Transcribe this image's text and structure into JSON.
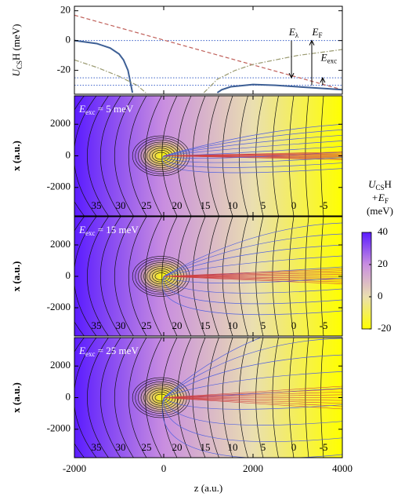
{
  "chart_data": [
    {
      "type": "line",
      "ylabel": {
        "base": "U",
        "sub": "CS",
        "rest": "H (meV)"
      },
      "xlim": [
        -2000,
        4000
      ],
      "ylim": [
        -36,
        23
      ],
      "yticks": [
        -20,
        0,
        20
      ],
      "hlines": {
        "values": [
          0,
          -25,
          -30
        ],
        "color": "#3a5fc8"
      },
      "series": [
        {
          "color": "#c0605a",
          "dash": "dashed",
          "x": [
            -2000,
            4000
          ],
          "values": [
            17,
            -33
          ]
        },
        {
          "color": "#3d5f95",
          "dash": "solid",
          "x": [
            -2000,
            -1500,
            -1200,
            -1000,
            -900,
            -800,
            -700,
            null,
            1200,
            1300,
            1500,
            2000,
            2500,
            3000,
            3500,
            4000
          ],
          "values": [
            0,
            -2,
            -5,
            -9,
            -13,
            -20,
            -35,
            null,
            -35,
            -33,
            -31,
            -29.5,
            -30,
            -31,
            -32,
            -33
          ]
        },
        {
          "color": "#9a9a70",
          "dash": "dashdot",
          "x": [
            -2000,
            -1500,
            -1000,
            -600,
            -400,
            null,
            900,
            1200,
            1600,
            2000,
            3000,
            4000
          ],
          "values": [
            -13,
            -18,
            -24,
            -30,
            -35,
            null,
            -35,
            -26,
            -20,
            -16,
            -10,
            -6
          ]
        }
      ],
      "annotations": [
        {
          "label": {
            "base": "E",
            "sub": "λ"
          },
          "x": 2860,
          "from": 0,
          "to": -25,
          "text_x": 2912,
          "text_y": 5
        },
        {
          "label": {
            "base": "E",
            "sub": "F"
          },
          "x": 3316,
          "from": -30,
          "to": 0,
          "text_x": 3439,
          "text_y": 5
        },
        {
          "label": {
            "base": "E",
            "sub": "exc"
          },
          "x": 3560,
          "from": -30,
          "to": -25,
          "text_x": 3700,
          "text_y": -12
        }
      ]
    },
    {
      "type": "contour",
      "title": {
        "base": "E",
        "sub": "exc",
        "rest": " = 5 meV"
      },
      "ylabel": "x (a.u.)",
      "xlim": [
        -2000,
        4000
      ],
      "ylim": [
        -3800,
        3800
      ],
      "yticks": [
        -2000,
        0,
        2000
      ],
      "contour_labels": {
        "values": [
          35,
          30,
          25,
          20,
          15,
          10,
          5,
          0,
          -5
        ],
        "z": [
          -1509,
          -965,
          -386,
          298,
          930,
          1544,
          2228,
          2912,
          3579
        ]
      }
    },
    {
      "type": "contour",
      "title": {
        "base": "E",
        "sub": "exc",
        "rest": " = 15 meV"
      },
      "ylabel": "x (a.u.)",
      "xlim": [
        -2000,
        4000
      ],
      "ylim": [
        -3800,
        3800
      ],
      "yticks": [
        -2000,
        0,
        2000
      ],
      "contour_labels": {
        "values": [
          35,
          30,
          25,
          20,
          15,
          10,
          5,
          0,
          -5
        ],
        "z": [
          -1509,
          -965,
          -386,
          298,
          930,
          1544,
          2228,
          2912,
          3579
        ]
      }
    },
    {
      "type": "contour",
      "title": {
        "base": "E",
        "sub": "exc",
        "rest": " = 25 meV"
      },
      "ylabel": "x (a.u.)",
      "xlabel": "z (a.u.)",
      "xlim": [
        -2000,
        4000
      ],
      "ylim": [
        -3800,
        3800
      ],
      "yticks": [
        -2000,
        0,
        2000
      ],
      "xticks": [
        -2000,
        0,
        2000,
        4000
      ],
      "contour_labels": {
        "values": [
          35,
          30,
          25,
          20,
          15,
          10,
          5,
          0,
          -5
        ],
        "z": [
          -1509,
          -965,
          -386,
          298,
          930,
          1544,
          2228,
          2912,
          3579
        ]
      }
    }
  ],
  "colorbar": {
    "label": [
      {
        "base": "U",
        "sub": "CS",
        "rest": "H"
      },
      {
        "base": "+E",
        "sub": "F"
      },
      {
        "rest": "(meV)"
      }
    ],
    "lim": [
      -20,
      40
    ],
    "ticks": [
      40,
      20,
      0,
      -20
    ],
    "colors": [
      "#ffff00",
      "#eadfb0",
      "#c98ee0",
      "#5b1cff"
    ]
  }
}
